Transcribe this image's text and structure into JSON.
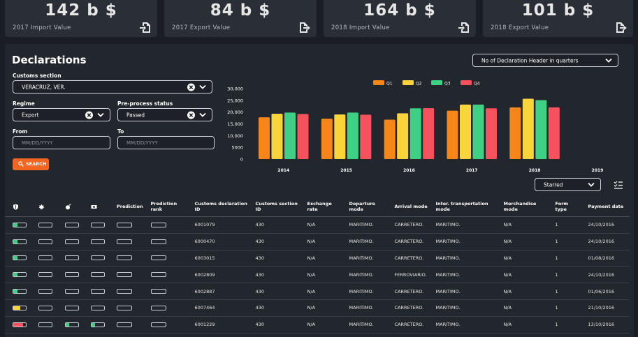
{
  "kpis": [
    {
      "value": "142 b $",
      "label": "2017 Import Value",
      "icon": "import-icon"
    },
    {
      "value": "84 b $",
      "label": "2017 Export Value",
      "icon": "export-icon"
    },
    {
      "value": "164 b $",
      "label": "2018 Import Value",
      "icon": "import-icon"
    },
    {
      "value": "101 b $",
      "label": "2018 Export Value",
      "icon": "export-icon"
    }
  ],
  "panel": {
    "title": "Declarations",
    "metric_select": "No of Declaration Header in quarters"
  },
  "filters": {
    "customs_section_label": "Customs section",
    "customs_section_value": "VERACRUZ, VER.",
    "regime_label": "Regime",
    "regime_value": "Export",
    "preprocess_label": "Pre-process status",
    "preprocess_value": "Passed",
    "from_label": "From",
    "from_placeholder": "MM/DD/YYYY",
    "to_label": "To",
    "to_placeholder": "MM/DD/YYYY",
    "search_label": "SEARCH"
  },
  "sort_select": "Starred",
  "colors": {
    "q1": "#f7861a",
    "q2": "#fbd33a",
    "q3": "#3ed183",
    "q4": "#f5525b",
    "accent": "#f26522"
  },
  "chart_data": {
    "type": "bar",
    "categories": [
      "2014",
      "2015",
      "2016",
      "2017",
      "2018",
      "2019"
    ],
    "series": [
      {
        "name": "Q1",
        "values": [
          17800,
          17200,
          16800,
          20600,
          22000,
          null
        ]
      },
      {
        "name": "Q2",
        "values": [
          19300,
          19000,
          19500,
          23200,
          25700,
          null
        ]
      },
      {
        "name": "Q3",
        "values": [
          19800,
          19800,
          21600,
          23200,
          25100,
          null
        ]
      },
      {
        "name": "Q4",
        "values": [
          19200,
          18900,
          21700,
          21600,
          22000,
          null
        ]
      }
    ],
    "ylim": [
      0,
      30000
    ],
    "yticks": [
      "0",
      "5000",
      "10,000",
      "15,000",
      "20,000",
      "25,000",
      "30,000"
    ],
    "legend": "top-center",
    "grid": false
  },
  "table": {
    "headers": [
      "",
      "",
      "",
      "",
      "Prediction",
      "Prediction rank",
      "Customs declaration ID",
      "Customs section ID",
      "Exchange rate",
      "Departure mode",
      "Arrival mode",
      "Inter. transportation mode",
      "Merchandise mode",
      "Form type",
      "Payment date"
    ],
    "header_icons": [
      "shield-icon",
      "leaf-icon",
      "bomb-icon",
      "money-icon"
    ],
    "rows": [
      {
        "bars": [
          {
            "level": 0.35,
            "color": "#3ed183"
          },
          {
            "level": 0,
            "color": ""
          },
          {
            "level": 0,
            "color": ""
          },
          {
            "level": 0,
            "color": ""
          }
        ],
        "cells": [
          "6001079",
          "430",
          "N/A",
          "MARITIMO.",
          "CARRETERO.",
          "MARITIMO.",
          "N/A",
          "1",
          "24/10/2016"
        ]
      },
      {
        "bars": [
          {
            "level": 0.35,
            "color": "#3ed183"
          },
          {
            "level": 0,
            "color": ""
          },
          {
            "level": 0,
            "color": ""
          },
          {
            "level": 0,
            "color": ""
          }
        ],
        "cells": [
          "6000470",
          "430",
          "N/A",
          "MARITIMO.",
          "CARRETERO.",
          "MARITIMO.",
          "N/A",
          "1",
          "24/10/2016"
        ]
      },
      {
        "bars": [
          {
            "level": 0.35,
            "color": "#3ed183"
          },
          {
            "level": 0,
            "color": ""
          },
          {
            "level": 0,
            "color": ""
          },
          {
            "level": 0,
            "color": ""
          }
        ],
        "cells": [
          "6003015",
          "430",
          "N/A",
          "MARITIMO.",
          "CARRETERO.",
          "MARITIMO.",
          "N/A",
          "1",
          "01/08/2016"
        ]
      },
      {
        "bars": [
          {
            "level": 0.35,
            "color": "#3ed183"
          },
          {
            "level": 0,
            "color": ""
          },
          {
            "level": 0,
            "color": ""
          },
          {
            "level": 0,
            "color": ""
          }
        ],
        "cells": [
          "6002809",
          "430",
          "N/A",
          "MARITIMO.",
          "FERROVIARIO.",
          "MARITIMO.",
          "N/A",
          "1",
          "24/10/2016"
        ]
      },
      {
        "bars": [
          {
            "level": 0.35,
            "color": "#3ed183"
          },
          {
            "level": 0,
            "color": ""
          },
          {
            "level": 0,
            "color": ""
          },
          {
            "level": 0,
            "color": ""
          }
        ],
        "cells": [
          "6002887",
          "430",
          "N/A",
          "MARITIMO.",
          "CARRETERO.",
          "MARITIMO.",
          "N/A",
          "1",
          "01/06/2016"
        ]
      },
      {
        "bars": [
          {
            "level": 0.55,
            "color": "#fbd33a"
          },
          {
            "level": 0,
            "color": ""
          },
          {
            "level": 0,
            "color": ""
          },
          {
            "level": 0,
            "color": ""
          }
        ],
        "cells": [
          "6007464",
          "430",
          "N/A",
          "MARITIMO.",
          "CARRETERO.",
          "MARITIMO.",
          "N/A",
          "1",
          "21/10/2016"
        ]
      },
      {
        "bars": [
          {
            "level": 0.75,
            "color": "#f5525b"
          },
          {
            "level": 0,
            "color": ""
          },
          {
            "level": 0.3,
            "color": "#3ed183"
          },
          {
            "level": 0.3,
            "color": "#3ed183"
          }
        ],
        "cells": [
          "6001229",
          "430",
          "N/A",
          "MARITIMO.",
          "CARRETERO.",
          "MARITIMO.",
          "N/A",
          "1",
          "13/10/2016"
        ]
      }
    ]
  }
}
